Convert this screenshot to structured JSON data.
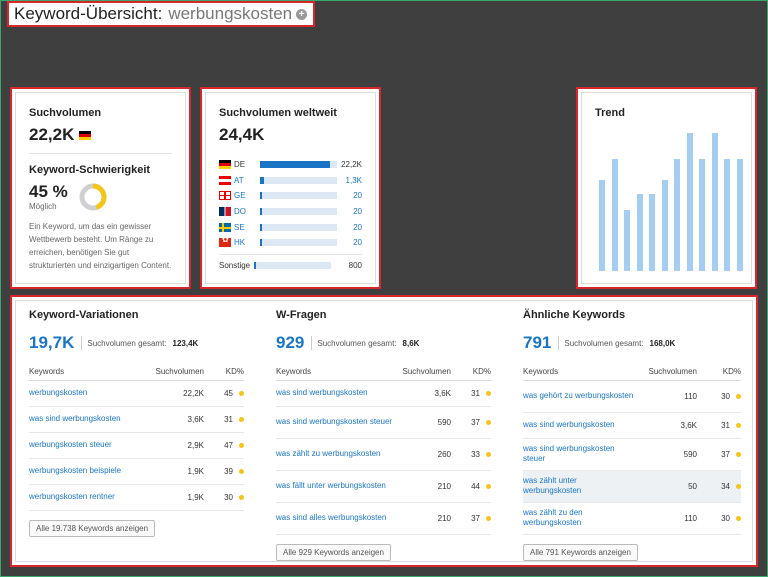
{
  "header": {
    "title": "Keyword-Übersicht:",
    "keyword": "werbungskosten"
  },
  "volume": {
    "title": "Suchvolumen",
    "value": "22,2K",
    "kd_title": "Keyword-Schwierigkeit",
    "kd_value": "45 %",
    "kd_label": "Möglich",
    "kd_percent": 45,
    "kd_color": "#f5c518",
    "description": "Ein Keyword, um das ein gewisser Wettbewerb besteht. Um Ränge zu erreichen, benötigen Sie gut strukturierten und einzigartigen Content."
  },
  "global": {
    "title": "Suchvolumen weltweit",
    "value": "24,4K",
    "countries": [
      {
        "code": "DE",
        "flag": "flag-de",
        "value": "22,2K",
        "share": 0.91,
        "link": false
      },
      {
        "code": "AT",
        "flag": "flag-at",
        "value": "1,3K",
        "share": 0.05,
        "link": true
      },
      {
        "code": "GE",
        "flag": "flag-ge",
        "value": "20",
        "share": 0.02,
        "link": true
      },
      {
        "code": "DO",
        "flag": "flag-do",
        "value": "20",
        "share": 0.02,
        "link": true
      },
      {
        "code": "SE",
        "flag": "flag-se",
        "value": "20",
        "share": 0.02,
        "link": true
      },
      {
        "code": "HK",
        "flag": "flag-hk",
        "value": "20",
        "share": 0.02,
        "link": true
      }
    ],
    "other_label": "Sonstige",
    "other_value": "800",
    "other_share": 0.03
  },
  "trend": {
    "title": "Trend",
    "values": [
      0.66,
      0.81,
      0.44,
      0.56,
      0.56,
      0.66,
      0.81,
      1.0,
      0.81,
      1.0,
      0.81,
      0.81
    ]
  },
  "variations": {
    "title": "Keyword-Variationen",
    "count": "19,7K",
    "total_label": "Suchvolumen gesamt:",
    "total": "123,4K",
    "headers": [
      "Keywords",
      "Suchvolumen",
      "KD%"
    ],
    "rows": [
      {
        "kw": "werbungskosten",
        "vol": "22,2K",
        "kd": "45"
      },
      {
        "kw": "was sind werbungskosten",
        "vol": "3,6K",
        "kd": "31"
      },
      {
        "kw": "werbungskosten steuer",
        "vol": "2,9K",
        "kd": "47"
      },
      {
        "kw": "werbungskosten beispiele",
        "vol": "1,9K",
        "kd": "39"
      },
      {
        "kw": "werbungskosten rentner",
        "vol": "1,9K",
        "kd": "30"
      }
    ],
    "button": "Alle 19.738 Keywords anzeigen"
  },
  "questions": {
    "title": "W-Fragen",
    "count": "929",
    "total_label": "Suchvolumen gesamt:",
    "total": "8,6K",
    "headers": [
      "Keywords",
      "Suchvolumen",
      "KD%"
    ],
    "rows": [
      {
        "kw": "was sind werbungskosten",
        "vol": "3,6K",
        "kd": "31"
      },
      {
        "kw": "was sind werbungskosten steuer",
        "vol": "590",
        "kd": "37"
      },
      {
        "kw": "was zählt zu werbungskosten",
        "vol": "260",
        "kd": "33"
      },
      {
        "kw": "was fällt unter werbungskosten",
        "vol": "210",
        "kd": "44"
      },
      {
        "kw": "was sind alles werbungskosten",
        "vol": "210",
        "kd": "37"
      }
    ],
    "button": "Alle 929 Keywords anzeigen"
  },
  "related": {
    "title": "Ähnliche Keywords",
    "count": "791",
    "total_label": "Suchvolumen gesamt:",
    "total": "168,0K",
    "headers": [
      "Keywords",
      "Suchvolumen",
      "KD%"
    ],
    "rows": [
      {
        "kw": "was gehört zu werbungskosten",
        "vol": "110",
        "kd": "30"
      },
      {
        "kw": "was sind werbungskosten",
        "vol": "3,6K",
        "kd": "31"
      },
      {
        "kw": "was sind werbungskosten steuer",
        "vol": "590",
        "kd": "37"
      },
      {
        "kw": "was zählt unter werbungskosten",
        "vol": "50",
        "kd": "34"
      },
      {
        "kw": "was zählt zu den werbungskosten",
        "vol": "110",
        "kd": "30"
      }
    ],
    "button": "Alle 791 Keywords anzeigen"
  }
}
